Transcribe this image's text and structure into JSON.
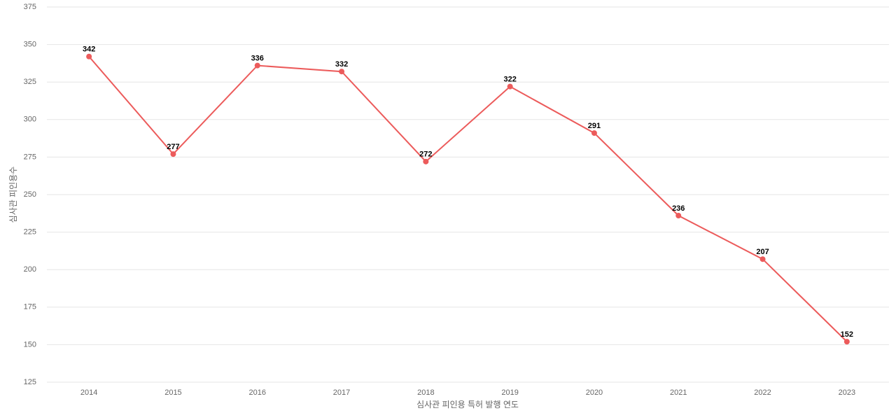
{
  "chart_data": {
    "type": "line",
    "categories": [
      "2014",
      "2015",
      "2016",
      "2017",
      "2018",
      "2019",
      "2020",
      "2021",
      "2022",
      "2023"
    ],
    "series": [
      {
        "name": "심사관 피인용수",
        "color": "#ec5b5b",
        "values": [
          342,
          277,
          336,
          332,
          272,
          322,
          291,
          236,
          207,
          152
        ]
      }
    ],
    "ylim": [
      125,
      375
    ],
    "yticks": [
      125,
      150,
      175,
      200,
      225,
      250,
      275,
      300,
      325,
      350,
      375
    ],
    "grid": true,
    "xlabel": "심사관 피인용 특허 발행 연도",
    "ylabel": "심사관 피인용수"
  }
}
